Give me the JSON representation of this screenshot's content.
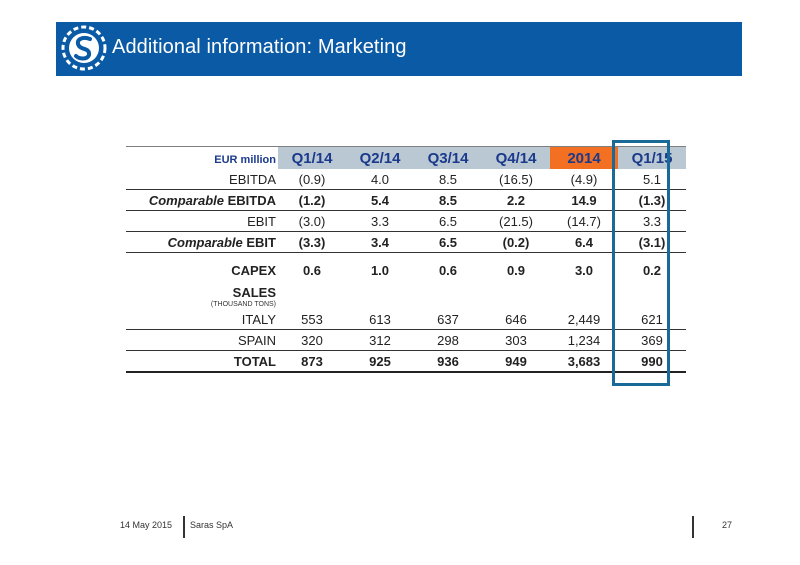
{
  "header": {
    "title": "Additional information: Marketing",
    "bg_color": "#0b5aa6",
    "logo_icon": "saras-logo-icon"
  },
  "table": {
    "unit_label": "EUR million",
    "columns": [
      "Q1/14",
      "Q2/14",
      "Q3/14",
      "Q4/14",
      "2014",
      "Q1/15"
    ],
    "highlight_column": "Q1/15",
    "year_column_color": "#f36f21",
    "quarter_header_color": "#b9c8d3",
    "rows": [
      {
        "label_plain": "EBITDA",
        "label_italic": "",
        "values": [
          "(0.9)",
          "4.0",
          "8.5",
          "(16.5)",
          "(4.9)",
          "5.1"
        ]
      },
      {
        "label_plain": "EBITDA",
        "label_italic": "Comparable",
        "values": [
          "(1.2)",
          "5.4",
          "8.5",
          "2.2",
          "14.9",
          "(1.3)"
        ]
      },
      {
        "label_plain": "EBIT",
        "label_italic": "",
        "values": [
          "(3.0)",
          "3.3",
          "6.5",
          "(21.5)",
          "(14.7)",
          "3.3"
        ]
      },
      {
        "label_plain": "EBIT",
        "label_italic": "Comparable",
        "values": [
          "(3.3)",
          "3.4",
          "6.5",
          "(0.2)",
          "6.4",
          "(3.1)"
        ]
      }
    ],
    "capex": {
      "label": "CAPEX",
      "values": [
        "0.6",
        "1.0",
        "0.6",
        "0.9",
        "3.0",
        "0.2"
      ]
    },
    "sales": {
      "title": "SALES",
      "subtitle": "(THOUSAND TONS)",
      "rows": [
        {
          "label": "ITALY",
          "values": [
            "553",
            "613",
            "637",
            "646",
            "2,449",
            "621"
          ]
        },
        {
          "label": "SPAIN",
          "values": [
            "320",
            "312",
            "298",
            "303",
            "1,234",
            "369"
          ]
        },
        {
          "label": "TOTAL",
          "values": [
            "873",
            "925",
            "936",
            "949",
            "3,683",
            "990"
          ]
        }
      ]
    }
  },
  "footer": {
    "date": "14 May 2015",
    "company": "Saras SpA",
    "page": "27"
  }
}
